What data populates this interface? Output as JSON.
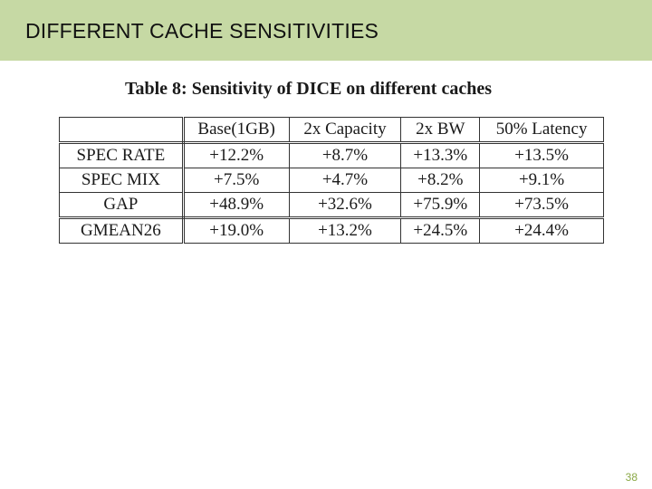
{
  "slide": {
    "title": "DIFFERENT CACHE SENSITIVITIES",
    "page_number": "38",
    "colors": {
      "banner": "#c6d9a4",
      "page_number": "#8aa845"
    }
  },
  "table": {
    "caption": "Table 8: Sensitivity of DICE on different caches",
    "headers": [
      "",
      "Base(1GB)",
      "2x Capacity",
      "2x BW",
      "50% Latency"
    ],
    "rows": [
      {
        "label": "SPEC RATE",
        "values": [
          "+12.2%",
          "+8.7%",
          "+13.3%",
          "+13.5%"
        ]
      },
      {
        "label": "SPEC MIX",
        "values": [
          "+7.5%",
          "+4.7%",
          "+8.2%",
          "+9.1%"
        ]
      },
      {
        "label": "GAP",
        "values": [
          "+48.9%",
          "+32.6%",
          "+75.9%",
          "+73.5%"
        ]
      },
      {
        "label": "GMEAN26",
        "values": [
          "+19.0%",
          "+13.2%",
          "+24.5%",
          "+24.4%"
        ]
      }
    ]
  }
}
